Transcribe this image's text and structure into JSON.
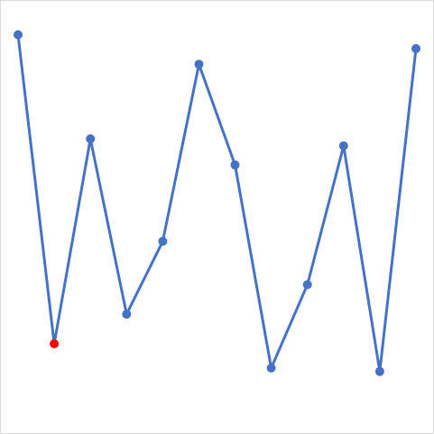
{
  "chart_data": {
    "type": "line",
    "x": [
      1,
      2,
      3,
      4,
      5,
      6,
      7,
      8,
      9,
      10,
      11,
      12
    ],
    "series": [
      {
        "values": [
          10.0,
          1.1,
          7.0,
          1.95,
          4.05,
          9.15,
          6.25,
          0.4,
          2.8,
          6.8,
          0.3,
          9.6
        ],
        "color": "#4472c4",
        "highlight_index": 1,
        "highlight_color": "#ff0000"
      }
    ],
    "xlim": [
      0.5,
      12.5
    ],
    "ylim": [
      -1.5,
      11.0
    ],
    "grid": false,
    "legend": "none",
    "title": "",
    "xlabel": "",
    "ylabel": ""
  }
}
